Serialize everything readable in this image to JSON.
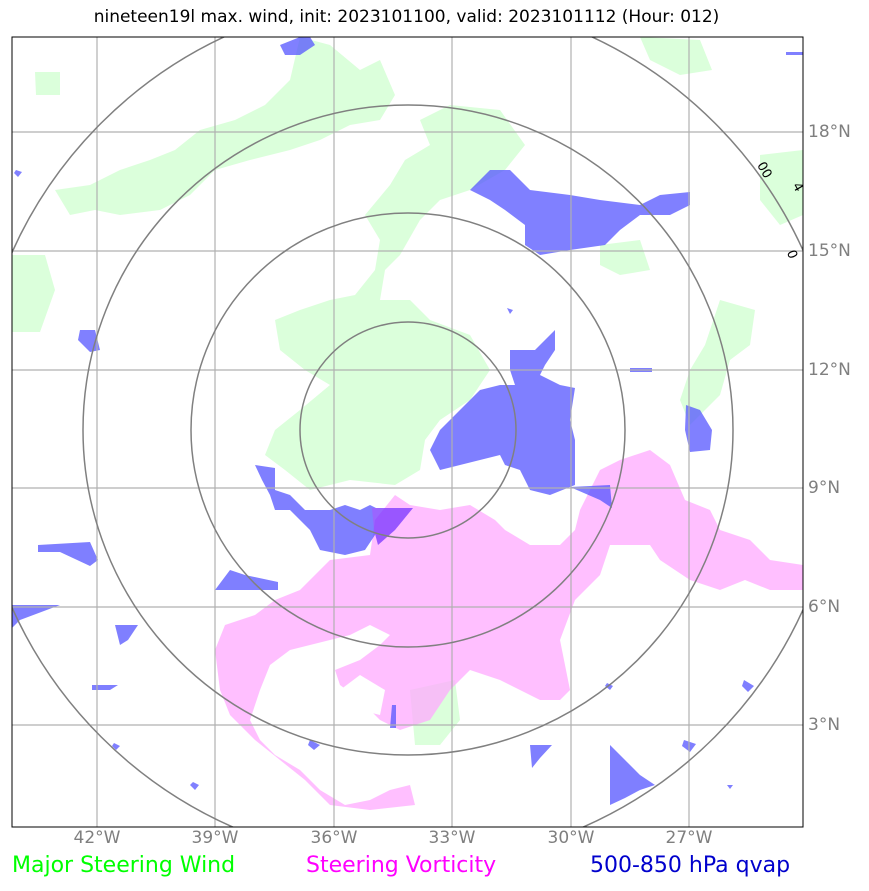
{
  "title": "nineteen19l max. wind, init: 2023101100, valid: 2023101112 (Hour: 012)",
  "lon_labels": [
    "42°W",
    "39°W",
    "36°W",
    "33°W",
    "30°W",
    "27°W"
  ],
  "lat_labels": [
    "18°N",
    "15°N",
    "12°N",
    "9°N",
    "6°N",
    "3°N"
  ],
  "ring_labels": [
    "00",
    "4",
    "0"
  ],
  "legend": {
    "wind": "Major Steering Wind",
    "vorticity": "Steering Vorticity",
    "qvap": "500-850 hPa qvap"
  },
  "colors": {
    "wind_fill": "#ccffcc",
    "vorticity_fill": "#ffaaff",
    "qvap_fill": "#5555ff",
    "grid": "#b0b0b0",
    "rings": "#808080"
  }
}
